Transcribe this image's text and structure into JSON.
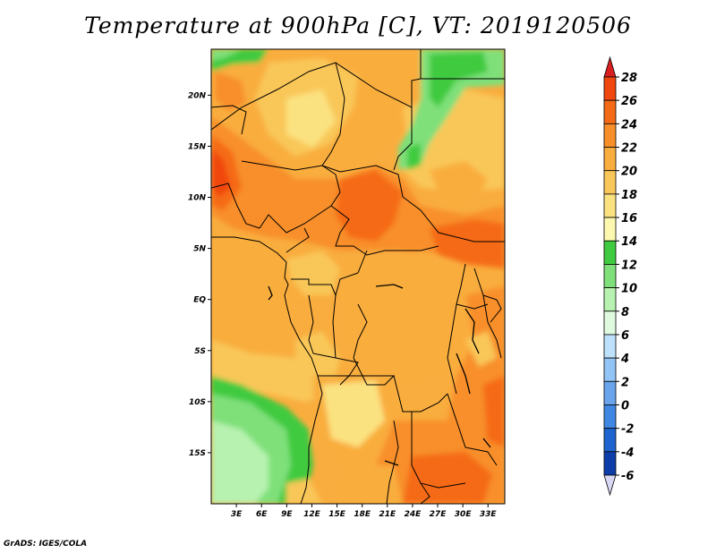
{
  "title": "Temperature at 900hPa [C], VT: 2019120506",
  "credit": "GrADS: IGES/COLA",
  "map": {
    "lat_labels": [
      "20N",
      "15N",
      "10N",
      "5N",
      "EQ",
      "5S",
      "10S",
      "15S"
    ],
    "lat_values": [
      20,
      15,
      10,
      5,
      0,
      -5,
      -10,
      -15
    ],
    "lon_labels": [
      "3E",
      "6E",
      "9E",
      "12E",
      "15E",
      "18E",
      "21E",
      "24E",
      "27E",
      "30E",
      "33E"
    ],
    "lon_values": [
      3,
      6,
      9,
      12,
      15,
      18,
      21,
      24,
      27,
      30,
      33
    ],
    "lat_range": [
      -20,
      24.5
    ],
    "lon_range": [
      0,
      35
    ]
  },
  "colorbar": {
    "labels": [
      "28",
      "26",
      "24",
      "22",
      "20",
      "18",
      "16",
      "14",
      "12",
      "10",
      "8",
      "6",
      "4",
      "2",
      "0",
      "-2",
      "-4",
      "-6"
    ],
    "colors": [
      "#e8281c",
      "#f0460f",
      "#f56a16",
      "#f88f2a",
      "#f9ad3e",
      "#f9c759",
      "#fbe280",
      "#fdf8b0",
      "#3fca3f",
      "#7fe07a",
      "#b7f2b0",
      "#e0fae0",
      "#bde0fb",
      "#92c4f5",
      "#6aa4ec",
      "#3f87e3",
      "#1e63cf",
      "#0c3da8",
      "#061e7a"
    ],
    "top_color": "#d81f1f",
    "bottom_color": "#d8d8f5"
  }
}
